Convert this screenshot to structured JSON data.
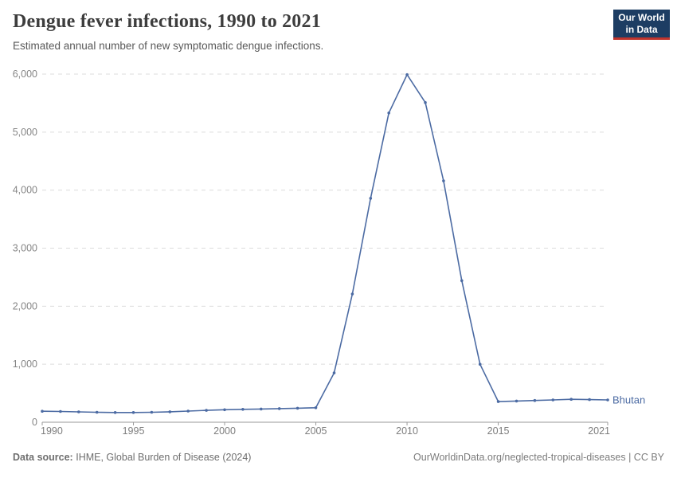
{
  "header": {
    "title": "Dengue fever infections, 1990 to 2021",
    "subtitle": "Estimated annual number of new symptomatic dengue infections."
  },
  "logo": {
    "line1": "Our World",
    "line2": "in Data"
  },
  "chart_data": {
    "type": "line",
    "title": "Dengue fever infections, 1990 to 2021",
    "x": [
      1990,
      1991,
      1992,
      1993,
      1994,
      1995,
      1996,
      1997,
      1998,
      1999,
      2000,
      2001,
      2002,
      2003,
      2004,
      2005,
      2006,
      2007,
      2008,
      2009,
      2010,
      2011,
      2012,
      2013,
      2014,
      2015,
      2016,
      2017,
      2018,
      2019,
      2020,
      2021
    ],
    "series": [
      {
        "name": "Bhutan",
        "values": [
          190,
          185,
          178,
          172,
          168,
          168,
          172,
          180,
          192,
          205,
          215,
          222,
          228,
          235,
          242,
          250,
          850,
          2210,
          3860,
          5330,
          5990,
          5510,
          4160,
          2440,
          1000,
          355,
          365,
          375,
          385,
          395,
          390,
          385
        ]
      }
    ],
    "xlabel": "",
    "ylabel": "",
    "ylim": [
      0,
      6000
    ],
    "yticks": [
      0,
      1000,
      2000,
      3000,
      4000,
      5000,
      6000
    ],
    "ytick_labels": [
      "0",
      "1,000",
      "2,000",
      "3,000",
      "4,000",
      "5,000",
      "6,000"
    ],
    "xticks": [
      1990,
      1995,
      2000,
      2005,
      2010,
      2015,
      2021
    ],
    "xtick_labels": [
      "1990",
      "1995",
      "2000",
      "2005",
      "2010",
      "2015",
      "2021"
    ],
    "grid": "horizontal-dashed",
    "legend_position": "line-end",
    "entity_label": "Bhutan"
  },
  "colors": {
    "line": "#4c6ba3",
    "grid": "#dcdcdc",
    "axis": "#9a9a9a",
    "ytick_label": "#858585",
    "xtick_label": "#7d7d7d",
    "logo_bg": "#1d3d63",
    "logo_red": "#c0342d"
  },
  "footer": {
    "source_label": "Data source:",
    "source_value": "IHME, Global Burden of Disease (2024)",
    "credit": "OurWorldinData.org/neglected-tropical-diseases | CC BY"
  }
}
